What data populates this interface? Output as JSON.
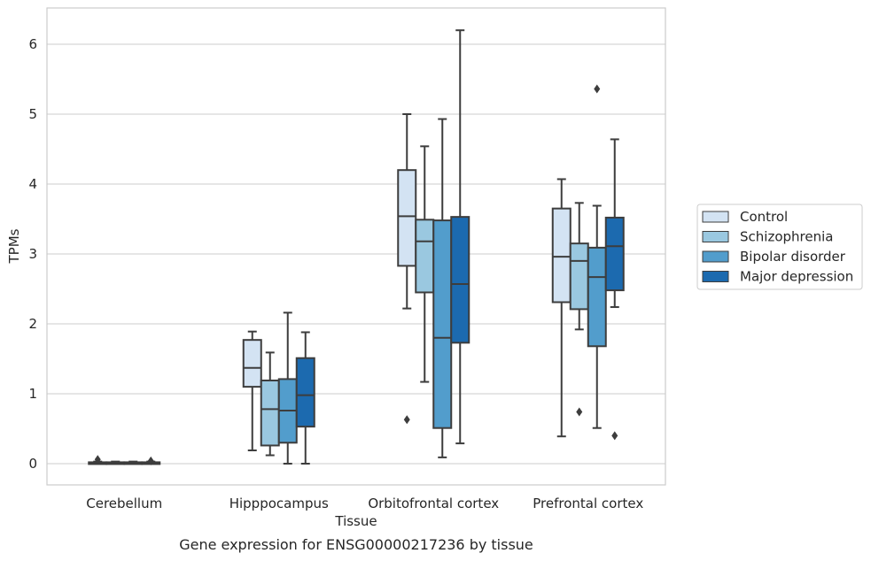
{
  "chart_data": {
    "type": "boxplot",
    "title": "Gene expression for ENSG00000217236 by tissue",
    "xlabel": "Tissue",
    "ylabel": "TPMs",
    "ylim": [
      -0.3,
      6.5
    ],
    "yticks": [
      "0",
      "1",
      "2",
      "3",
      "4",
      "5",
      "6"
    ],
    "grid": "horizontal",
    "legend_position": "right",
    "categories": [
      "Cerebellum",
      "Hipppocampus",
      "Orbitofrontal cortex",
      "Prefrontal cortex"
    ],
    "series": [
      {
        "name": "Control",
        "color": "#d3e3f3",
        "boxes": [
          {
            "whislo": 0.0,
            "q1": 0.0,
            "med": 0.01,
            "q3": 0.02,
            "whishi": 0.03,
            "fliers": [
              0.06
            ]
          },
          {
            "whislo": 0.19,
            "q1": 1.1,
            "med": 1.37,
            "q3": 1.77,
            "whishi": 1.89,
            "fliers": []
          },
          {
            "whislo": 2.22,
            "q1": 2.83,
            "med": 3.54,
            "q3": 4.2,
            "whishi": 5.0,
            "fliers": [
              0.63
            ]
          },
          {
            "whislo": 0.39,
            "q1": 2.31,
            "med": 2.96,
            "q3": 3.65,
            "whishi": 4.07,
            "fliers": []
          }
        ]
      },
      {
        "name": "Schizophrenia",
        "color": "#9ac8e0",
        "boxes": [
          {
            "whislo": 0.0,
            "q1": 0.0,
            "med": 0.01,
            "q3": 0.02,
            "whishi": 0.03,
            "fliers": []
          },
          {
            "whislo": 0.12,
            "q1": 0.26,
            "med": 0.78,
            "q3": 1.19,
            "whishi": 1.59,
            "fliers": []
          },
          {
            "whislo": 1.17,
            "q1": 2.45,
            "med": 3.18,
            "q3": 3.49,
            "whishi": 4.54,
            "fliers": []
          },
          {
            "whislo": 1.92,
            "q1": 2.21,
            "med": 2.9,
            "q3": 3.15,
            "whishi": 3.73,
            "fliers": [
              0.74
            ]
          }
        ]
      },
      {
        "name": "Bipolar disorder",
        "color": "#529dcc",
        "boxes": [
          {
            "whislo": 0.0,
            "q1": 0.0,
            "med": 0.01,
            "q3": 0.02,
            "whishi": 0.03,
            "fliers": []
          },
          {
            "whislo": 0.0,
            "q1": 0.3,
            "med": 0.76,
            "q3": 1.21,
            "whishi": 2.16,
            "fliers": []
          },
          {
            "whislo": 0.09,
            "q1": 0.51,
            "med": 1.8,
            "q3": 3.48,
            "whishi": 4.93,
            "fliers": []
          },
          {
            "whislo": 0.51,
            "q1": 1.68,
            "med": 2.67,
            "q3": 3.09,
            "whishi": 3.69,
            "fliers": [
              5.36
            ]
          }
        ]
      },
      {
        "name": "Major depression",
        "color": "#1c6aaf",
        "boxes": [
          {
            "whislo": 0.0,
            "q1": 0.0,
            "med": 0.01,
            "q3": 0.02,
            "whishi": 0.03,
            "fliers": [
              0.04
            ]
          },
          {
            "whislo": 0.0,
            "q1": 0.53,
            "med": 0.98,
            "q3": 1.51,
            "whishi": 1.88,
            "fliers": []
          },
          {
            "whislo": 0.29,
            "q1": 1.73,
            "med": 2.57,
            "q3": 3.53,
            "whishi": 6.2,
            "fliers": []
          },
          {
            "whislo": 2.24,
            "q1": 2.48,
            "med": 3.11,
            "q3": 3.52,
            "whishi": 4.64,
            "fliers": [
              0.4
            ]
          }
        ]
      }
    ]
  }
}
